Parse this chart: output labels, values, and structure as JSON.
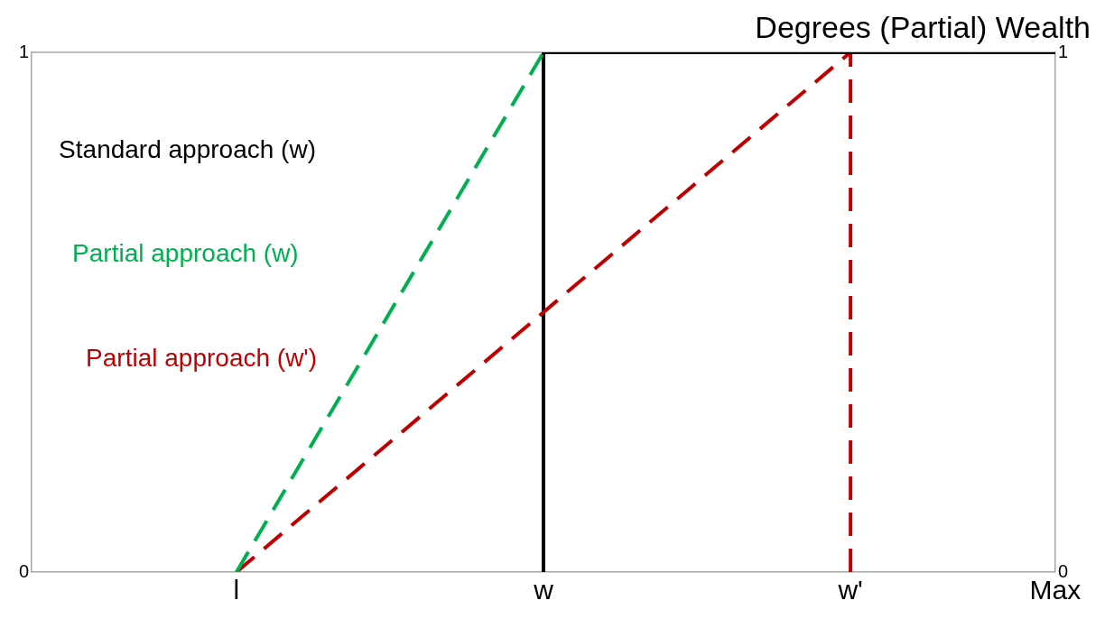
{
  "chart_data": {
    "type": "line",
    "title": "Degrees (Partial) Wealth",
    "categories": [
      null,
      null,
      "l",
      null,
      null,
      "w",
      null,
      null,
      "w'",
      null,
      "Max"
    ],
    "ylim": [
      0,
      1
    ],
    "yticks": [
      0,
      1
    ],
    "y2lim": [
      0,
      1
    ],
    "y2ticks": [
      0,
      1
    ],
    "legend": false,
    "marker": "none",
    "series": [
      {
        "name": "Standard approach (w)",
        "color": "#000000",
        "values": [
          null,
          null,
          null,
          null,
          null,
          1,
          null,
          null,
          null,
          null,
          1
        ],
        "line_style": "solid"
      },
      {
        "name": "Partial approach (w)",
        "color": "#00b050",
        "values": [
          null,
          null,
          0,
          null,
          null,
          1,
          null,
          null,
          null,
          null,
          null
        ],
        "line_style": "dashed"
      },
      {
        "name": "Partial approach (w')",
        "color": "#c00000",
        "values": [
          null,
          null,
          0,
          null,
          null,
          null,
          null,
          null,
          1,
          null,
          null
        ],
        "line_style": "dashed"
      }
    ],
    "ref_lines": [
      {
        "axis": "x",
        "value": "w",
        "color": "#000000",
        "line_style": "solid"
      },
      {
        "axis": "x",
        "value": "w'",
        "color": "#c00000",
        "line_style": "dashed"
      }
    ]
  }
}
